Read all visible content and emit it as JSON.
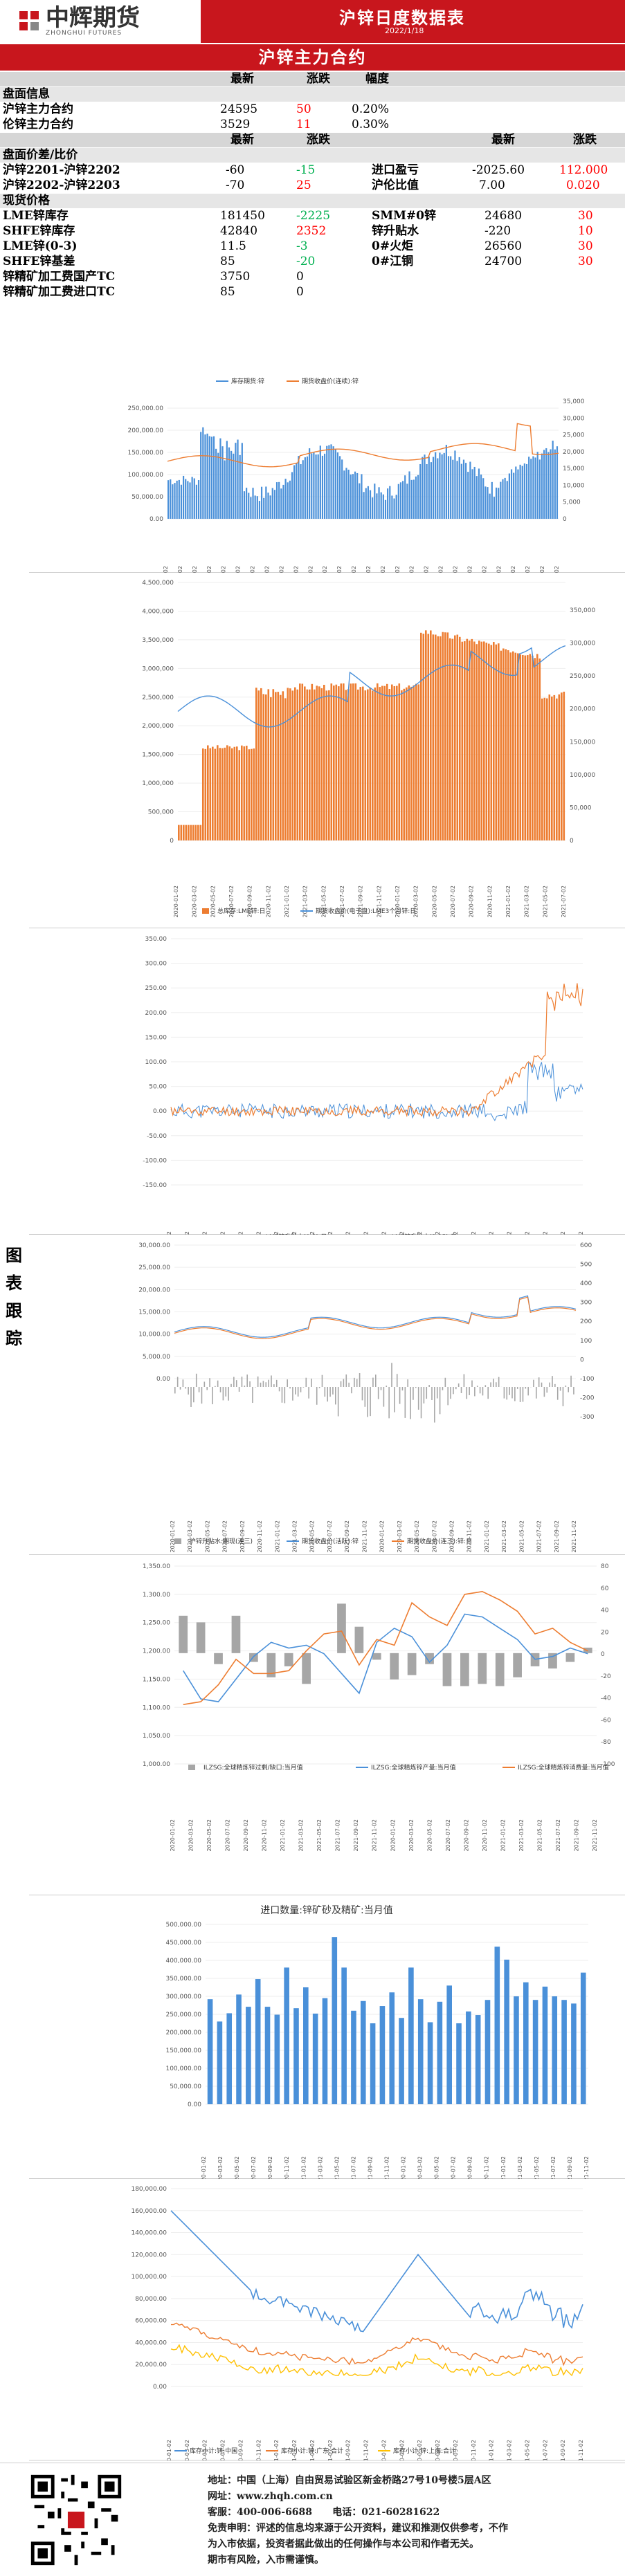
{
  "header": {
    "logo_cn": "中辉期货",
    "logo_en": "ZHONGHUI FUTURES",
    "title": "沪锌日度数据表",
    "date": "2022/1/18"
  },
  "subtitle": "沪锌主力合约",
  "table1": {
    "headers": [
      "最新",
      "涨跌",
      "幅度"
    ],
    "section": "盘面信息",
    "rows": [
      {
        "name": "沪锌主力合约",
        "latest": "24595",
        "change": "50",
        "pct": "0.20%"
      },
      {
        "name": "伦锌主力合约",
        "latest": "3529",
        "change": "11",
        "pct": "0.30%"
      }
    ]
  },
  "table2": {
    "headers": [
      "最新",
      "涨跌",
      "最新",
      "涨跌"
    ],
    "section": "盘面价差/比价",
    "rows": [
      {
        "name": "沪锌2201-沪锌2202",
        "latest": "-60",
        "change": "-15",
        "name2": "进口盈亏",
        "latest2": "-2025.60",
        "change2": "112.000"
      },
      {
        "name": "沪锌2202-沪锌2203",
        "latest": "-70",
        "change": "25",
        "name2": "沪伦比值",
        "latest2": "7.00",
        "change2": "0.020"
      }
    ]
  },
  "table3": {
    "section": "现货价格",
    "rows": [
      {
        "name": "LME锌库存",
        "latest": "181450",
        "change": "-2225",
        "name2": "SMM#0锌",
        "latest2": "24680",
        "change2": "30"
      },
      {
        "name": "SHFE锌库存",
        "latest": "42840",
        "change": "2352",
        "name2": "锌升贴水",
        "latest2": "-220",
        "change2": "10"
      },
      {
        "name": "LME锌(0-3)",
        "latest": "11.5",
        "change": "-3",
        "name2": "0#火炬",
        "latest2": "26560",
        "change2": "30"
      },
      {
        "name": "SHFE锌基差",
        "latest": "85",
        "change": "-20",
        "name2": "0#江铜",
        "latest2": "24700",
        "change2": "30"
      },
      {
        "name": "锌精矿加工费国产TC",
        "latest": "3750",
        "change": "0",
        "name2": "",
        "latest2": "",
        "change2": ""
      },
      {
        "name": "锌精矿加工费进口TC",
        "latest": "85",
        "change": "0",
        "name2": "",
        "latest2": "",
        "change2": ""
      }
    ]
  },
  "side_label": "图表跟踪",
  "chart_data": [
    {
      "type": "line",
      "legend": [
        "库存期货:锌",
        "期货收盘价(连续):锌"
      ],
      "yleft": [
        "250,000.00",
        "200,000.00",
        "150,000.00",
        "100,000.00",
        "50,000.00",
        "0.00"
      ],
      "yright": [
        "35,000",
        "30,000",
        "25,000",
        "20,000",
        "15,000",
        "10,000",
        "5,000",
        "0"
      ],
      "colors": [
        "#4a90d9",
        "#ed7d31"
      ]
    },
    {
      "type": "bar",
      "legend": [
        "总库存:LME锌:日",
        "期货收盘价(电子盘):LME3个月锌:日"
      ],
      "yleft": [
        "4,500,000",
        "4,000,000",
        "3,500,000",
        "3,000,000",
        "2,500,000",
        "2,000,000",
        "1,500,000",
        "1,000,000",
        "500,000",
        "0"
      ],
      "yright": [
        "350,000",
        "300,000",
        "250,000",
        "200,000",
        "150,000",
        "100,000",
        "50,000",
        "0"
      ],
      "colors": [
        "#ed7d31",
        "#4a90d9"
      ]
    },
    {
      "type": "line",
      "legend": [
        "LME锌升贴水(0-3):日",
        "LME锌升贴水(3-15):日"
      ],
      "yleft": [
        "350.00",
        "300.00",
        "250.00",
        "200.00",
        "150.00",
        "100.00",
        "50.00",
        "0.00",
        "-50.00",
        "-100.00",
        "-150.00"
      ],
      "colors": [
        "#4a90d9",
        "#ed7d31"
      ]
    },
    {
      "type": "line",
      "legend": [
        "沪锌升贴水:期现(连三)",
        "期货收盘价(活跃):锌",
        "期货收盘价(连三):锌:日"
      ],
      "yleft": [
        "30,000.00",
        "25,000.00",
        "20,000.00",
        "15,000.00",
        "10,000.00",
        "5,000.00",
        "0.00"
      ],
      "yright": [
        "600",
        "500",
        "400",
        "300",
        "200",
        "100",
        "0",
        "-100",
        "-200",
        "-300"
      ],
      "colors": [
        "#a6a6a6",
        "#4a90d9",
        "#ed7d31"
      ]
    },
    {
      "type": "bar",
      "legend": [
        "ILZSG:全球精炼锌过剩/缺口:当月值",
        "ILZSG:全球精炼锌产量:当月值",
        "ILZSG:全球精炼锌消费量:当月值"
      ],
      "yleft": [
        "1,350.00",
        "1,300.00",
        "1,250.00",
        "1,200.00",
        "1,150.00",
        "1,100.00",
        "1,050.00",
        "1,000.00"
      ],
      "yright": [
        "80",
        "60",
        "40",
        "20",
        "0",
        "-20",
        "-40",
        "-60",
        "-80",
        "-100"
      ],
      "colors": [
        "#a6a6a6",
        "#4a90d9",
        "#ed7d31"
      ]
    },
    {
      "type": "bar",
      "title": "进口数量:锌矿砂及精矿:当月值",
      "yleft": [
        "500,000.00",
        "450,000.00",
        "400,000.00",
        "350,000.00",
        "300,000.00",
        "250,000.00",
        "200,000.00",
        "150,000.00",
        "100,000.00",
        "50,000.00",
        "0.00"
      ],
      "colors": [
        "#4a90d9"
      ]
    },
    {
      "type": "line",
      "legend": [
        "库存小计:锌:中国",
        "库存小计:锌:广东:合计",
        "库存小计:锌:上海:合计"
      ],
      "yleft": [
        "180,000.00",
        "160,000.00",
        "140,000.00",
        "120,000.00",
        "100,000.00",
        "80,000.00",
        "60,000.00",
        "40,000.00",
        "20,000.00",
        "0.00"
      ],
      "colors": [
        "#4a90d9",
        "#ed7d31",
        "#ffc000"
      ]
    }
  ],
  "footer": {
    "addr": "地址：中国（上海）自由贸易试验区新金桥路27号10号楼5层A区",
    "web": "网址：www.zhqh.com.cn",
    "phone": "客服：400-006-6688",
    "tel": "电话：021-60281622",
    "disclaimer1": "免责申明：评述的信息均来源于公开资料，建议和推测仅供参考，不作",
    "disclaimer2": "为入市依据，投资者据此做出的任何操作与本公司和作者无关。",
    "disclaimer3": "期市有风险，入市需谨慎。"
  }
}
